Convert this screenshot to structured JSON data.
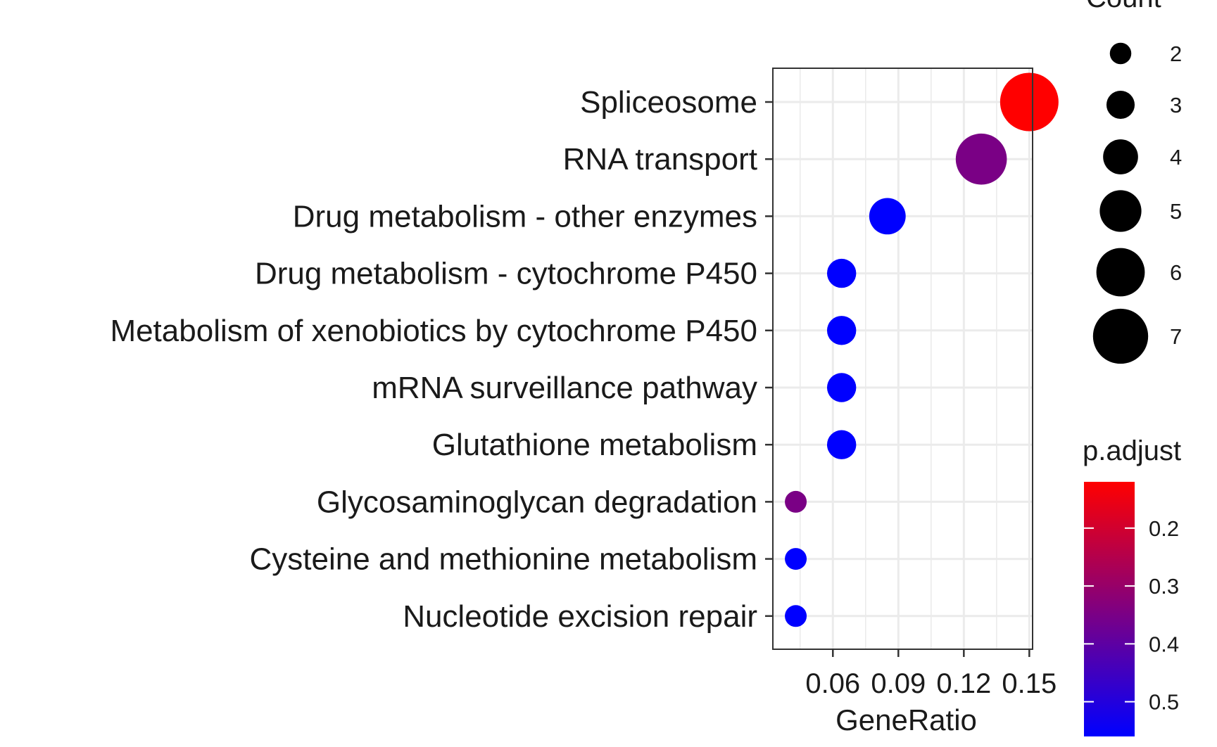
{
  "chart_data": {
    "type": "scatter",
    "xlabel": "GeneRatio",
    "ylabel": "",
    "grid": true,
    "xlim": [
      0.0325,
      0.1515
    ],
    "x_ticks": [
      0.06,
      0.09,
      0.12,
      0.15
    ],
    "x_tick_labels": [
      "0.06",
      "0.09",
      "0.12",
      "0.15"
    ],
    "categories": [
      "Spliceosome",
      "RNA transport",
      "Drug metabolism - other enzymes",
      "Drug metabolism - cytochrome P450",
      "Metabolism of xenobiotics by cytochrome P450",
      "mRNA surveillance pathway",
      "Glutathione metabolism",
      "Glycosaminoglycan degradation",
      "Cysteine and methionine metabolism",
      "Nucleotide excision repair"
    ],
    "points": [
      {
        "category": "Spliceosome",
        "x": 0.15,
        "count": 7,
        "p_adjust": 0.12
      },
      {
        "category": "RNA transport",
        "x": 0.128,
        "count": 6,
        "p_adjust": 0.35
      },
      {
        "category": "Drug metabolism - other enzymes",
        "x": 0.085,
        "count": 4,
        "p_adjust": 0.56
      },
      {
        "category": "Drug metabolism - cytochrome P450",
        "x": 0.064,
        "count": 3,
        "p_adjust": 0.56
      },
      {
        "category": "Metabolism of xenobiotics by cytochrome P450",
        "x": 0.064,
        "count": 3,
        "p_adjust": 0.56
      },
      {
        "category": "mRNA surveillance pathway",
        "x": 0.064,
        "count": 3,
        "p_adjust": 0.56
      },
      {
        "category": "Glutathione metabolism",
        "x": 0.064,
        "count": 3,
        "p_adjust": 0.56
      },
      {
        "category": "Glycosaminoglycan degradation",
        "x": 0.043,
        "count": 2,
        "p_adjust": 0.35
      },
      {
        "category": "Cysteine and methionine metabolism",
        "x": 0.043,
        "count": 2,
        "p_adjust": 0.56
      },
      {
        "category": "Nucleotide excision repair",
        "x": 0.043,
        "count": 2,
        "p_adjust": 0.56
      }
    ],
    "size_legend": {
      "title": "Count",
      "values": [
        2,
        3,
        4,
        5,
        6,
        7
      ],
      "labels": [
        "2",
        "3",
        "4",
        "5",
        "6",
        "7"
      ]
    },
    "color_legend": {
      "title": "p.adjust",
      "range": [
        0.12,
        0.56
      ],
      "ticks": [
        0.2,
        0.3,
        0.4,
        0.5
      ],
      "tick_labels": [
        "0.2",
        "0.3",
        "0.4",
        "0.5"
      ],
      "low_color": "#ff0000",
      "high_color": "#0000ff"
    },
    "colors": {
      "panel_border": "#333333",
      "grid": "#ebebeb",
      "tick": "#333333",
      "legend_dot": "#000000"
    }
  }
}
